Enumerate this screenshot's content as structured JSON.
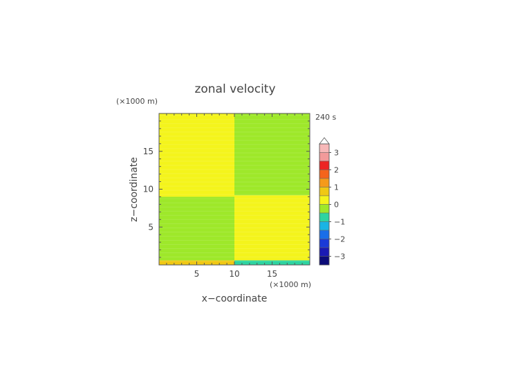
{
  "chart_data": {
    "type": "heatmap",
    "title": "zonal velocity",
    "xlabel": "x−coordinate",
    "ylabel": "z−coordinate",
    "x_unit": "(×1000 m)",
    "y_unit": "(×1000 m)",
    "time_label": "240 s",
    "xlim": [
      0,
      20
    ],
    "ylim": [
      0,
      20
    ],
    "x_ticks": [
      "5",
      "10",
      "15"
    ],
    "y_ticks": [
      "5",
      "10",
      "15"
    ],
    "x_tick_values": [
      5,
      10,
      15
    ],
    "y_tick_values": [
      5,
      10,
      15
    ],
    "colorbar": {
      "tick_labels": [
        "3",
        "2",
        "1",
        "0",
        "−1",
        "−2",
        "−3"
      ],
      "tick_values": [
        3,
        2,
        1,
        0,
        -1,
        -2,
        -3
      ],
      "levels": [
        {
          "value": 3.25,
          "color": "#f7b8b8"
        },
        {
          "value": 2.75,
          "color": "#f29a9a"
        },
        {
          "value": 2.25,
          "color": "#ec2424"
        },
        {
          "value": 1.75,
          "color": "#f4641c"
        },
        {
          "value": 1.25,
          "color": "#f59a1a"
        },
        {
          "value": 0.75,
          "color": "#f0c814"
        },
        {
          "value": 0.25,
          "color": "#f4f41c"
        },
        {
          "value": -0.25,
          "color": "#9ee82a"
        },
        {
          "value": -0.75,
          "color": "#2ed4a0"
        },
        {
          "value": -1.25,
          "color": "#1ab4e4"
        },
        {
          "value": -1.75,
          "color": "#1a6ee8"
        },
        {
          "value": -2.25,
          "color": "#1a3ad8"
        },
        {
          "value": -2.75,
          "color": "#1a1ab4"
        },
        {
          "value": -3.25,
          "color": "#0c0c78"
        }
      ],
      "extend_top": true
    },
    "regions": [
      {
        "x": [
          0,
          10
        ],
        "z": [
          0.6,
          9.0
        ],
        "value": -0.25
      },
      {
        "x": [
          0,
          10
        ],
        "z": [
          9.0,
          20
        ],
        "value": 0.25
      },
      {
        "x": [
          10,
          20
        ],
        "z": [
          0.6,
          9.2
        ],
        "value": 0.25
      },
      {
        "x": [
          10,
          20
        ],
        "z": [
          9.2,
          20
        ],
        "value": -0.25
      },
      {
        "x": [
          0,
          10
        ],
        "z": [
          0,
          0.6
        ],
        "value": 0.75
      },
      {
        "x": [
          10,
          20
        ],
        "z": [
          0,
          0.6
        ],
        "value": -0.75
      }
    ]
  }
}
